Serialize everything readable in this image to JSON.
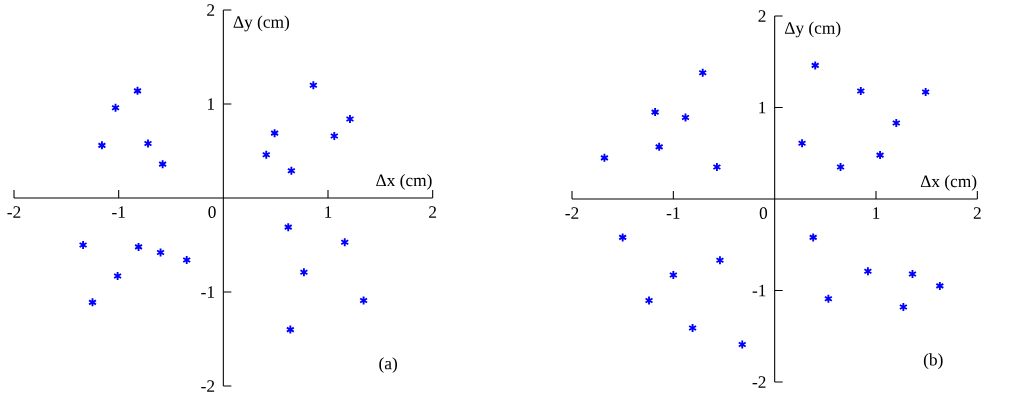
{
  "chart_data": [
    {
      "type": "scatter",
      "xlabel": "Δx (cm)",
      "ylabel": "Δy (cm)",
      "annotations": [
        "(a)"
      ],
      "color": "#0000ff",
      "marker": "cross",
      "x": [
        -0.82,
        -1.03,
        -1.16,
        -0.72,
        -0.58,
        -1.34,
        -0.81,
        -0.6,
        -0.35,
        -1.01,
        -1.25,
        0.86,
        1.21,
        0.49,
        1.06,
        0.41,
        0.65,
        0.62,
        1.16,
        0.77,
        1.34,
        0.64
      ],
      "values": [
        1.14,
        0.96,
        0.56,
        0.58,
        0.36,
        -0.5,
        -0.52,
        -0.58,
        -0.66,
        -0.83,
        -1.11,
        1.2,
        0.84,
        0.69,
        0.66,
        0.46,
        0.29,
        -0.31,
        -0.47,
        -0.79,
        -1.09,
        -1.4
      ],
      "xlim": [
        -2,
        2
      ],
      "ylim": [
        -2,
        2
      ],
      "xticks": [
        -2,
        -1,
        0,
        1,
        2
      ],
      "yticks": [
        -2,
        -1,
        1,
        2
      ]
    },
    {
      "type": "scatter",
      "xlabel": "Δx (cm)",
      "ylabel": "Δy (cm)",
      "annotations": [
        "(b)"
      ],
      "color": "#0000ff",
      "marker": "cross",
      "x": [
        -0.71,
        -1.18,
        -0.88,
        -1.14,
        -1.68,
        -0.57,
        -1.5,
        -0.54,
        -1.0,
        -1.24,
        -0.81,
        -0.32,
        0.4,
        0.85,
        1.49,
        1.2,
        0.27,
        1.04,
        0.65,
        0.38,
        0.92,
        1.36,
        1.63,
        0.53,
        1.27
      ],
      "values": [
        1.38,
        0.95,
        0.89,
        0.57,
        0.45,
        0.35,
        -0.42,
        -0.67,
        -0.83,
        -1.11,
        -1.41,
        -1.59,
        1.46,
        1.18,
        1.17,
        0.83,
        0.61,
        0.48,
        0.35,
        -0.42,
        -0.79,
        -0.82,
        -0.95,
        -1.09,
        -1.18
      ],
      "xlim": [
        -2,
        2
      ],
      "ylim": [
        -2,
        2
      ],
      "xticks": [
        -2,
        -1,
        0,
        1,
        2
      ],
      "yticks": [
        -2,
        -1,
        1,
        2
      ]
    }
  ]
}
